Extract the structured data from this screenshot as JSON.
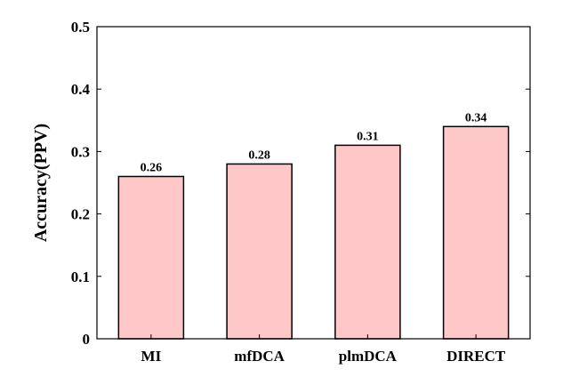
{
  "chart_data": {
    "type": "bar",
    "title": "",
    "xlabel": "",
    "ylabel": "Accuracy(PPV)",
    "categories": [
      "MI",
      "mfDCA",
      "plmDCA",
      "DIRECT"
    ],
    "values": [
      0.26,
      0.28,
      0.31,
      0.34
    ],
    "value_labels": [
      "0.26",
      "0.28",
      "0.31",
      "0.34"
    ],
    "ylim": [
      0,
      0.5
    ],
    "yticks": [
      0,
      0.1,
      0.2,
      0.3,
      0.4,
      0.5
    ],
    "ytick_labels": [
      "0",
      "0.1",
      "0.2",
      "0.3",
      "0.4",
      "0.5"
    ],
    "grid": false,
    "legend": false,
    "bar_color": "#ffc8c8",
    "bar_edge_color": "#000000"
  }
}
